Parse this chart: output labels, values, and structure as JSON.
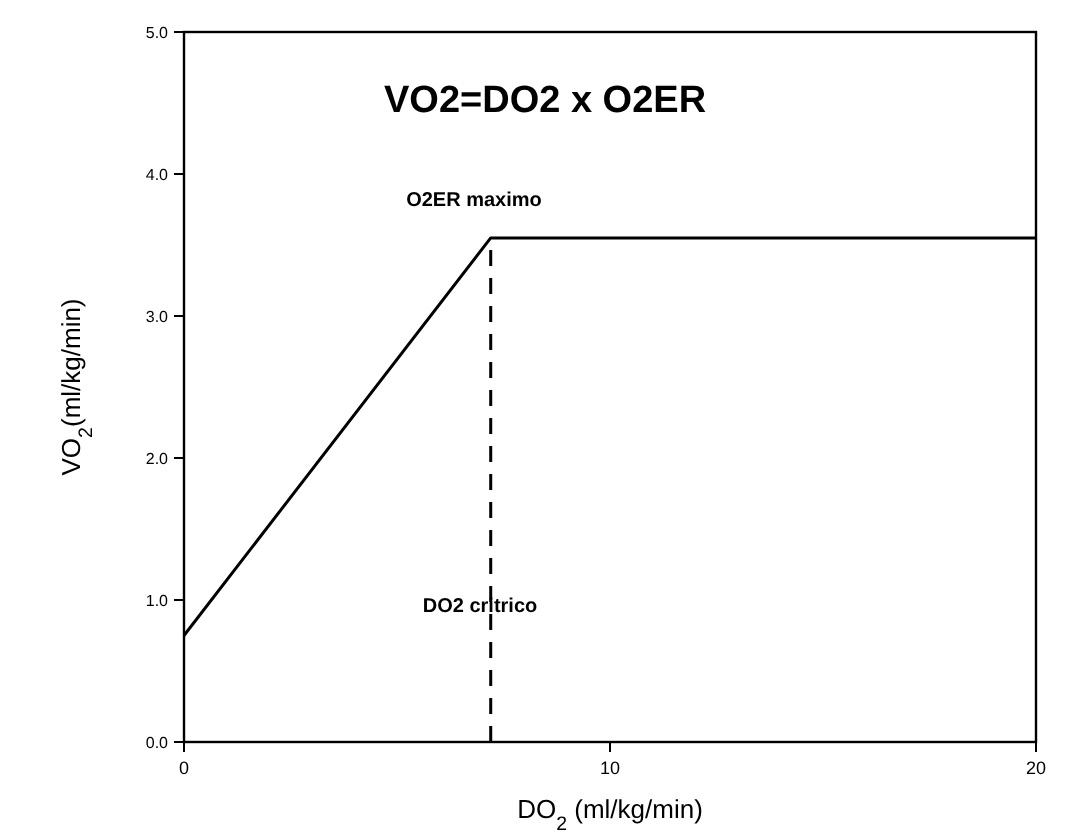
{
  "chart_data": {
    "type": "line",
    "title": "VO2=DO2 x O2ER",
    "xlabel": "DO$_{2}$ (ml/kg/min)",
    "ylabel": "VO$_{2}$(ml/kg/min)",
    "series": [
      {
        "color": "#000000",
        "x": [
          0,
          7.2,
          20
        ],
        "values": [
          0.75,
          3.55,
          3.55
        ],
        "line_style": "solid"
      },
      {
        "color": "#000000",
        "x": [
          7.2,
          7.2
        ],
        "values": [
          0,
          3.55
        ],
        "line_style": "dashed"
      }
    ],
    "xlim": [
      0,
      20
    ],
    "xticks": [
      0,
      10,
      20
    ],
    "ylim": [
      0,
      5
    ],
    "yticks": [
      {
        "value": 0,
        "label": "0.0"
      },
      {
        "value": 1,
        "label": "1.0"
      },
      {
        "value": 2,
        "label": "2.0"
      },
      {
        "value": 3,
        "label": "3.0"
      },
      {
        "value": 4,
        "label": "4.0"
      },
      {
        "value": 5,
        "label": "5.0"
      }
    ],
    "annotations": [
      "O2ER maximo",
      "DO2 critrico"
    ]
  }
}
